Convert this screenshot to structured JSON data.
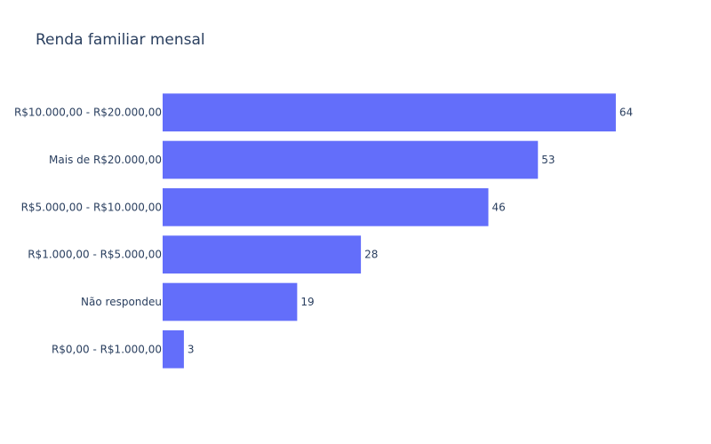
{
  "chart_data": {
    "type": "bar",
    "orientation": "horizontal",
    "title": "Renda familiar mensal",
    "categories": [
      "R$10.000,00 - R$20.000,00",
      "Mais de R$20.000,00",
      "R$5.000,00 - R$10.000,00",
      "R$1.000,00 - R$5.000,00",
      "Não respondeu",
      "R$0,00 - R$1.000,00"
    ],
    "values": [
      64,
      53,
      46,
      28,
      19,
      3
    ],
    "xlim": [
      0,
      67.4
    ],
    "grid": false,
    "bar_color": "#636efa",
    "text_color": "#2a3f5f"
  }
}
